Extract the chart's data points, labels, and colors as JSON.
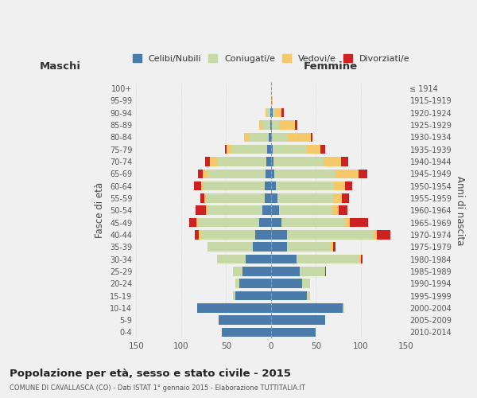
{
  "age_groups": [
    "0-4",
    "5-9",
    "10-14",
    "15-19",
    "20-24",
    "25-29",
    "30-34",
    "35-39",
    "40-44",
    "45-49",
    "50-54",
    "55-59",
    "60-64",
    "65-69",
    "70-74",
    "75-79",
    "80-84",
    "85-89",
    "90-94",
    "95-99",
    "100+"
  ],
  "birth_years": [
    "2010-2014",
    "2005-2009",
    "2000-2004",
    "1995-1999",
    "1990-1994",
    "1985-1989",
    "1980-1984",
    "1975-1979",
    "1970-1974",
    "1965-1969",
    "1960-1964",
    "1955-1959",
    "1950-1954",
    "1945-1949",
    "1940-1944",
    "1935-1939",
    "1930-1934",
    "1925-1929",
    "1920-1924",
    "1915-1919",
    "≤ 1914"
  ],
  "male": {
    "celibi": [
      55,
      58,
      82,
      40,
      35,
      32,
      28,
      20,
      18,
      13,
      10,
      7,
      7,
      6,
      5,
      4,
      3,
      1,
      1,
      0,
      0
    ],
    "coniugati": [
      0,
      0,
      0,
      2,
      5,
      10,
      32,
      50,
      60,
      68,
      60,
      65,
      68,
      65,
      55,
      40,
      22,
      9,
      4,
      0,
      0
    ],
    "vedovi": [
      0,
      0,
      0,
      0,
      0,
      0,
      0,
      1,
      2,
      2,
      2,
      2,
      3,
      5,
      8,
      5,
      5,
      3,
      1,
      0,
      0
    ],
    "divorziati": [
      0,
      0,
      0,
      0,
      0,
      0,
      0,
      0,
      5,
      8,
      12,
      5,
      8,
      5,
      5,
      2,
      0,
      0,
      0,
      0,
      0
    ]
  },
  "female": {
    "nubili": [
      50,
      60,
      80,
      40,
      35,
      32,
      28,
      18,
      18,
      12,
      9,
      7,
      5,
      4,
      3,
      2,
      1,
      1,
      2,
      0,
      0
    ],
    "coniugate": [
      0,
      0,
      1,
      3,
      8,
      28,
      70,
      48,
      95,
      70,
      58,
      62,
      65,
      68,
      55,
      38,
      18,
      8,
      2,
      0,
      0
    ],
    "vedove": [
      0,
      0,
      0,
      0,
      0,
      0,
      2,
      3,
      5,
      6,
      8,
      10,
      12,
      25,
      20,
      15,
      25,
      18,
      8,
      2,
      0
    ],
    "divorziate": [
      0,
      0,
      0,
      0,
      0,
      1,
      2,
      3,
      15,
      20,
      10,
      8,
      8,
      10,
      8,
      5,
      2,
      2,
      2,
      0,
      0
    ]
  },
  "colors": {
    "celibi": "#4a7baa",
    "coniugati": "#c8d9a8",
    "vedovi": "#f5c96a",
    "divorziati": "#cc2222"
  },
  "xlim": 150,
  "title": "Popolazione per età, sesso e stato civile - 2015",
  "subtitle": "COMUNE DI CAVALLASCA (CO) - Dati ISTAT 1° gennaio 2015 - Elaborazione TUTTITALIA.IT",
  "ylabel_left": "Fasce di età",
  "ylabel_right": "Anni di nascita",
  "xlabel_male": "Maschi",
  "xlabel_female": "Femmine",
  "bg_color": "#f0f0f0"
}
